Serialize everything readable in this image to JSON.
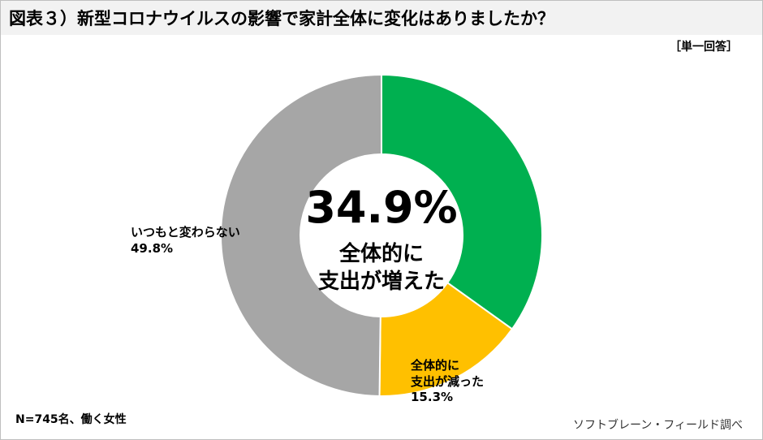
{
  "chart_data": {
    "type": "donut",
    "title": "図表３）新型コロナウイルスの影響で家計全体に変化はありましたか？",
    "note": "［単一回答］",
    "footnote": "N=745名、働く女性",
    "source": "ソフトブレーン・フィールド調べ",
    "categories": [
      "全体的に\n支出が増えた",
      "全体的に\n支出が減った",
      "いつもと変わらない"
    ],
    "values": [
      34.9,
      15.3,
      49.8
    ],
    "value_labels": [
      "34.9%",
      "15.3%",
      "49.8%"
    ],
    "colors": [
      "#00b050",
      "#ffc000",
      "#a6a6a6"
    ]
  }
}
